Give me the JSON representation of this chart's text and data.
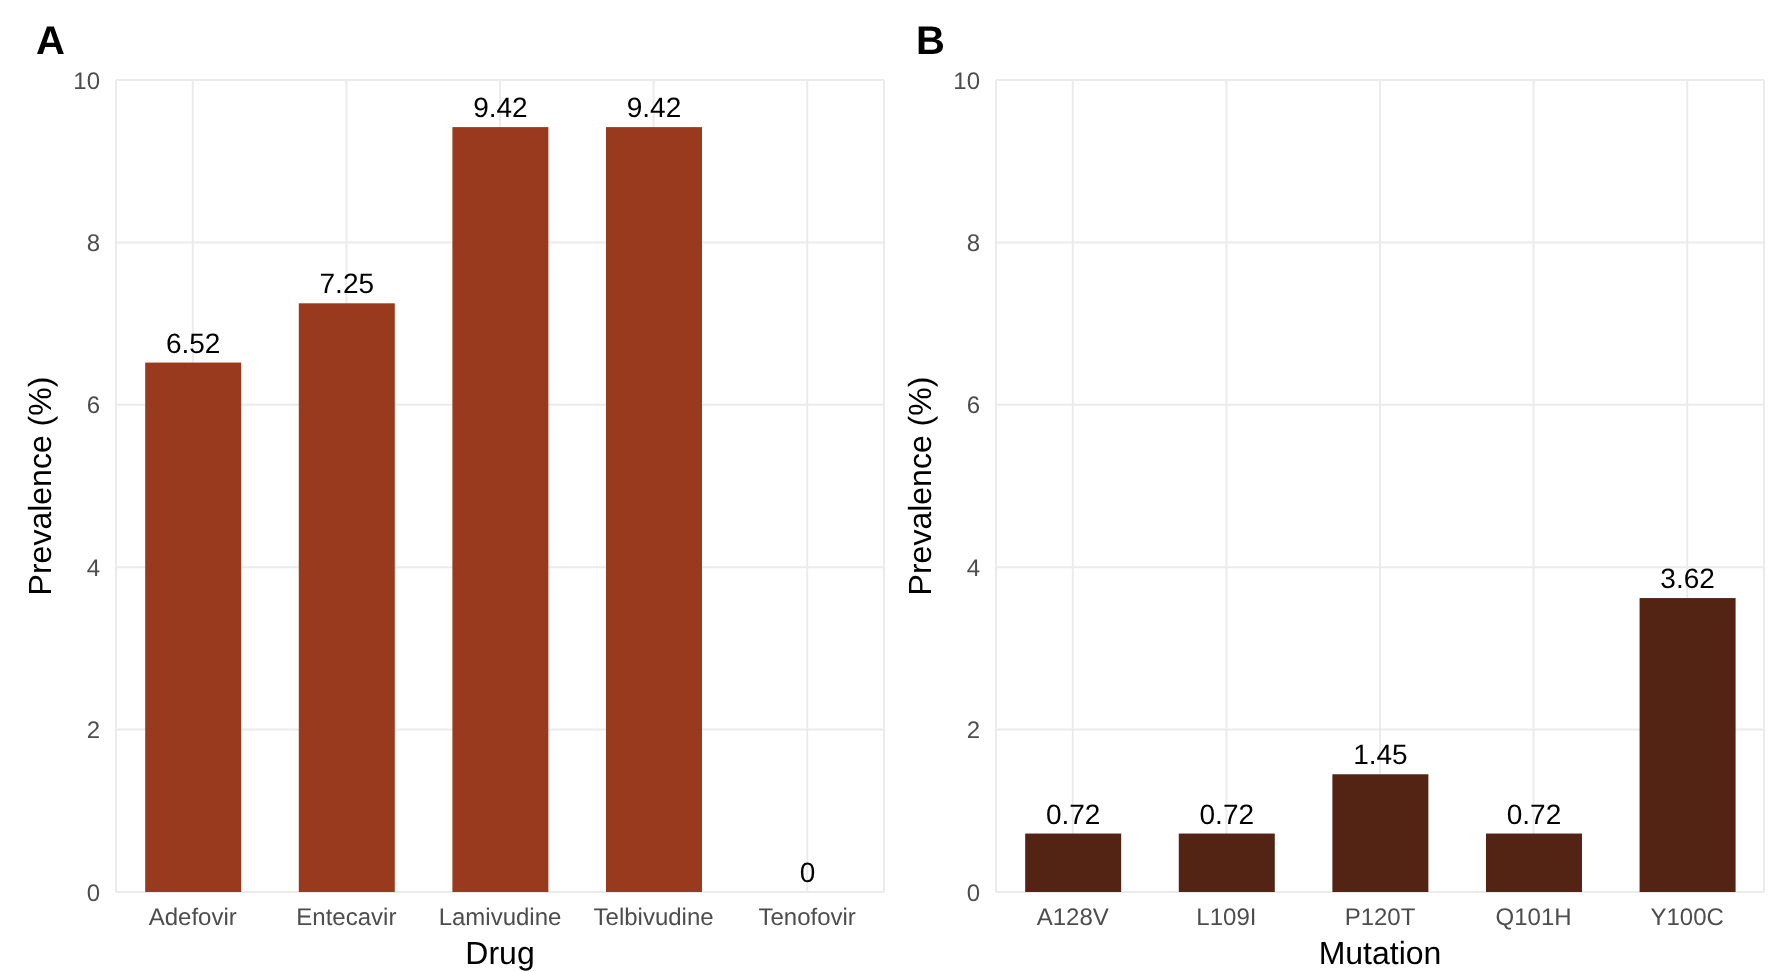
{
  "chart_data": [
    {
      "type": "bar",
      "title": "A",
      "xlabel": "Drug",
      "ylabel": "Prevalence (%)",
      "categories": [
        "Adefovir",
        "Entecavir",
        "Lamivudine",
        "Telbivudine",
        "Tenofovir"
      ],
      "values": [
        6.52,
        7.25,
        9.42,
        9.42,
        0
      ],
      "color": "#993a1e",
      "ylim": [
        0,
        10
      ],
      "yticks": [
        0,
        2,
        4,
        6,
        8,
        10
      ],
      "grid": true,
      "data_labels": true
    },
    {
      "type": "bar",
      "title": "B",
      "xlabel": "Mutation",
      "ylabel": "Prevalence (%)",
      "categories": [
        "A128V",
        "L109I",
        "P120T",
        "Q101H",
        "Y100C"
      ],
      "values": [
        0.72,
        0.72,
        1.45,
        0.72,
        3.62
      ],
      "color": "#532314",
      "ylim": [
        0,
        10
      ],
      "yticks": [
        0,
        2,
        4,
        6,
        8,
        10
      ],
      "grid": true,
      "data_labels": true
    }
  ]
}
